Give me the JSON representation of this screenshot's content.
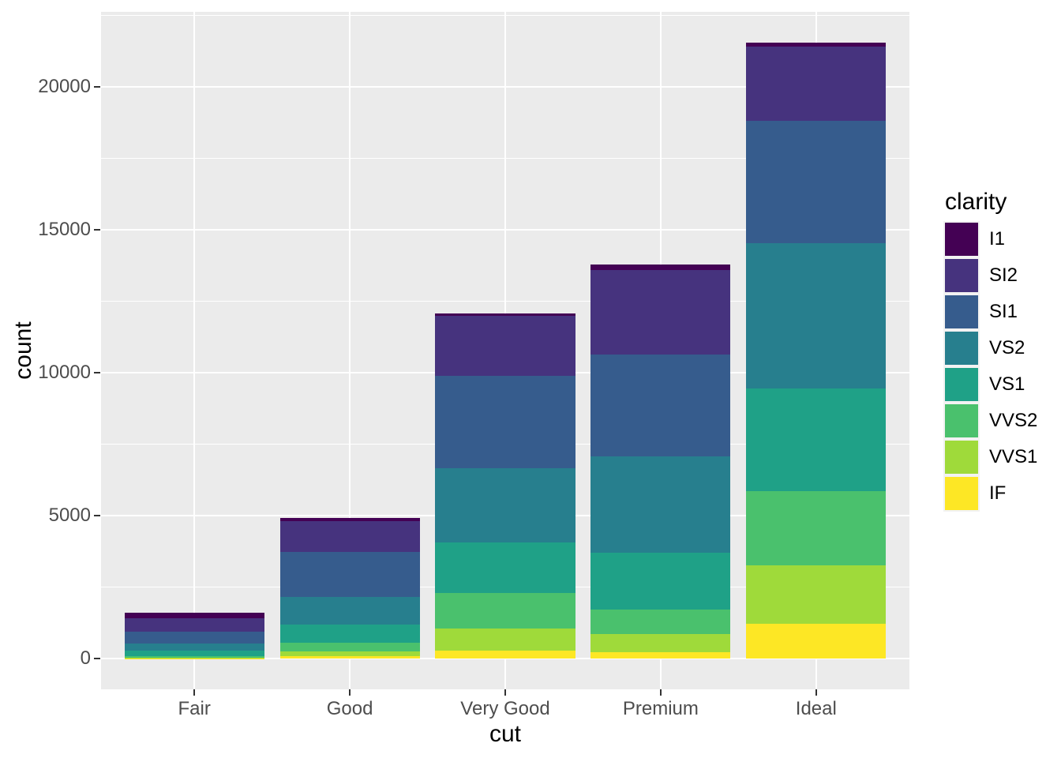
{
  "chart_data": {
    "type": "bar",
    "stacked": true,
    "title": "",
    "xlabel": "cut",
    "ylabel": "count",
    "categories": [
      "Fair",
      "Good",
      "Very Good",
      "Premium",
      "Ideal"
    ],
    "series": [
      {
        "name": "I1",
        "color": "#440154",
        "values": [
          210,
          96,
          84,
          205,
          146
        ]
      },
      {
        "name": "SI2",
        "color": "#46337E",
        "values": [
          466,
          1081,
          2100,
          2949,
          2598
        ]
      },
      {
        "name": "SI1",
        "color": "#365C8D",
        "values": [
          408,
          1560,
          3240,
          3575,
          4282
        ]
      },
      {
        "name": "VS2",
        "color": "#277F8E",
        "values": [
          261,
          978,
          2591,
          3357,
          5071
        ]
      },
      {
        "name": "VS1",
        "color": "#1FA187",
        "values": [
          170,
          648,
          1775,
          1989,
          3589
        ]
      },
      {
        "name": "VVS2",
        "color": "#4AC16D",
        "values": [
          69,
          286,
          1235,
          870,
          2606
        ]
      },
      {
        "name": "VVS1",
        "color": "#9FDA3A",
        "values": [
          17,
          186,
          789,
          616,
          2047
        ]
      },
      {
        "name": "IF",
        "color": "#FDE725",
        "values": [
          9,
          71,
          268,
          230,
          1212
        ]
      }
    ],
    "totals": [
      1610,
      4906,
      12082,
      13791,
      21551
    ],
    "y_ticks": [
      0,
      5000,
      10000,
      15000,
      20000
    ],
    "y_minor_ticks": [
      2500,
      7500,
      12500,
      17500,
      22500
    ],
    "ylim": [
      -1078,
      22629
    ],
    "legend": {
      "title": "clarity",
      "position": "right"
    },
    "grid": "on",
    "panel_background": "#EBEBEB",
    "grid_color": "#FFFFFF",
    "tick_label_color": "#4D4D4D",
    "axis_title_color": "#000000"
  }
}
